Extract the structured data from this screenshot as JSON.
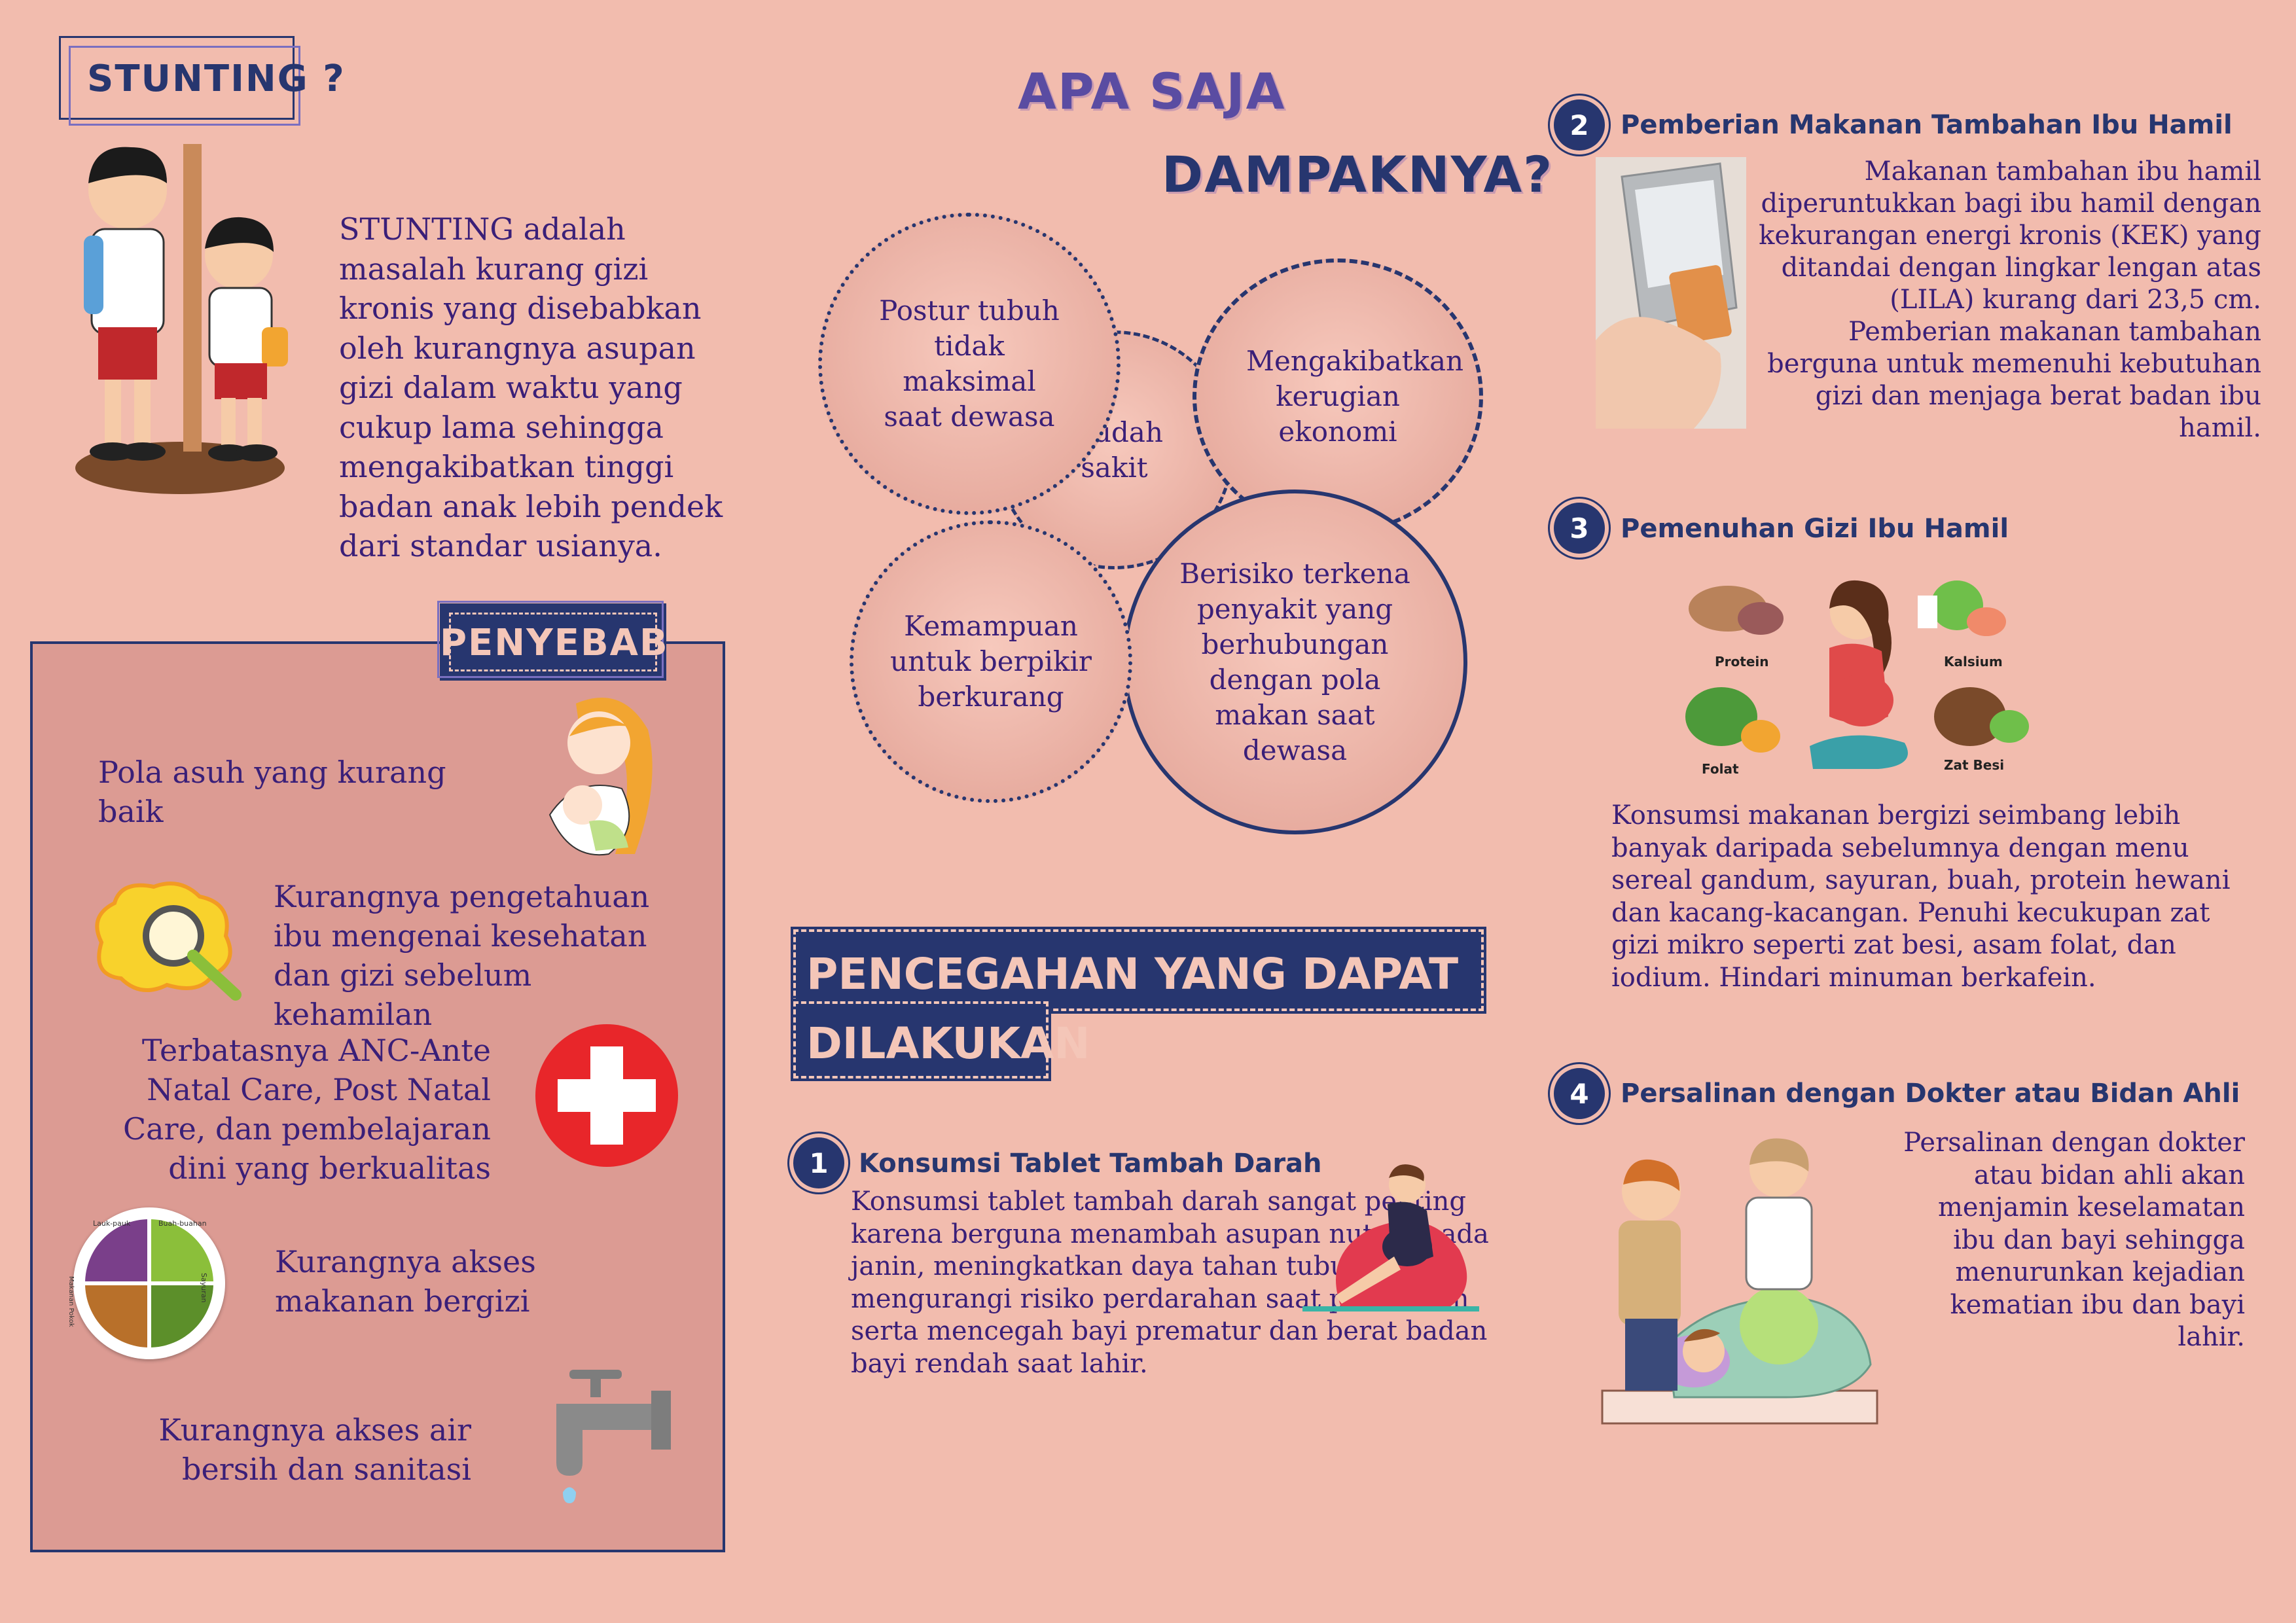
{
  "stunting": {
    "title": "STUNTING ?",
    "description": "STUNTING adalah masalah kurang gizi kronis yang disebabkan oleh kurangnya asupan gizi dalam waktu yang cukup lama sehingga mengakibatkan tinggi badan anak lebih pendek dari standar usianya."
  },
  "penyebab": {
    "title": "PENYEBAB",
    "items": [
      {
        "text": "Pola asuh yang kurang baik",
        "icon": "mother-baby-icon"
      },
      {
        "text": "Kurangnya pengetahuan ibu mengenai kesehatan dan gizi sebelum kehamilan",
        "icon": "brain-magnifier-icon"
      },
      {
        "text": "Terbatasnya ANC-Ante Natal Care, Post Natal Care, dan pembelajaran dini yang berkualitas",
        "icon": "red-cross-icon"
      },
      {
        "text": "Kurangnya akses makanan bergizi",
        "icon": "food-plate-icon",
        "plate_labels": [
          "Lauk-pauk",
          "Buah-buahan",
          "Makanan Pokok",
          "Sayuran"
        ]
      },
      {
        "text": "Kurangnya akses air bersih dan sanitasi",
        "icon": "water-faucet-icon"
      }
    ]
  },
  "dampak": {
    "title_line1": "APA SAJA",
    "title_line2": "DAMPAKNYA?",
    "circles": [
      "Postur tubuh tidak maksimal saat dewasa",
      "Mudah sakit",
      "Mengakibatkan kerugian ekonomi",
      "Kemampuan untuk berpikir berkurang",
      "Berisiko terkena penyakit yang berhubungan dengan pola makan saat dewasa"
    ]
  },
  "pencegahan": {
    "title_line1": "PENCEGAHAN YANG DAPAT",
    "title_line2": "DILAKUKAN",
    "steps": [
      {
        "number": "1",
        "title": "Konsumsi Tablet Tambah Darah",
        "text": "Konsumsi tablet tambah darah sangat penting karena berguna menambah asupan nutrisi pada janin, meningkatkan daya tahan tubuh, mengurangi risiko perdarahan saat persalinan serta mencegah bayi prematur dan berat badan bayi rendah saat lahir."
      },
      {
        "number": "2",
        "title": "Pemberian Makanan Tambahan Ibu Hamil",
        "text": "Makanan tambahan ibu hamil diperuntukkan bagi ibu hamil dengan kekurangan energi kronis (KEK) yang ditandai dengan lingkar lengan atas (LILA)  kurang dari  23,5 cm. Pemberian makanan tambahan berguna untuk memenuhi kebutuhan gizi dan menjaga berat badan ibu hamil."
      },
      {
        "number": "3",
        "title": "Pemenuhan Gizi Ibu Hamil",
        "text": "Konsumsi makanan bergizi seimbang lebih banyak daripada sebelumnya dengan menu sereal gandum, sayuran, buah, protein hewani dan kacang-kacangan. Penuhi kecukupan zat gizi mikro seperti zat besi, asam folat, dan iodium. Hindari minuman berkafein.",
        "nutrient_labels": [
          "Protein",
          "Kalsium",
          "Folat",
          "Zat Besi"
        ]
      },
      {
        "number": "4",
        "title": "Persalinan dengan Dokter atau Bidan Ahli",
        "text": "Persalinan dengan dokter atau bidan ahli akan menjamin keselamatan ibu dan bayi sehingga menurunkan kejadian kematian ibu dan bayi lahir."
      }
    ]
  },
  "colors": {
    "background": "#f2bcae",
    "navy": "#27366f",
    "text": "#3a1f78",
    "panel": "#dc9b93"
  }
}
